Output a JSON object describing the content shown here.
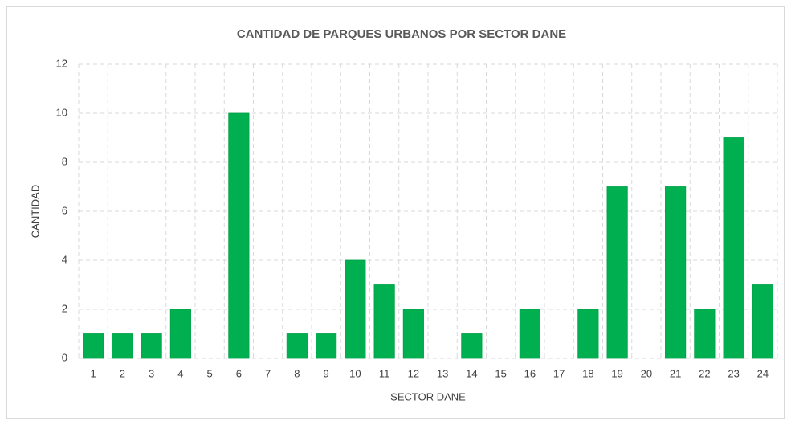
{
  "chart_data": {
    "type": "bar",
    "title": "CANTIDAD DE PARQUES URBANOS POR SECTOR DANE",
    "x_label": "SECTOR DANE",
    "y_label": "CANTIDAD",
    "categories": [
      "1",
      "2",
      "3",
      "4",
      "5",
      "6",
      "7",
      "8",
      "9",
      "10",
      "11",
      "12",
      "13",
      "14",
      "15",
      "16",
      "17",
      "18",
      "19",
      "20",
      "21",
      "22",
      "23",
      "24"
    ],
    "values": [
      1,
      1,
      1,
      2,
      0,
      10,
      0,
      1,
      1,
      4,
      3,
      2,
      0,
      1,
      0,
      2,
      0,
      2,
      7,
      0,
      7,
      2,
      9,
      3
    ],
    "color": "#00b050",
    "ylim": [
      0,
      12
    ],
    "yticks": [
      0,
      2,
      4,
      6,
      8,
      10,
      12
    ],
    "grid": true
  }
}
